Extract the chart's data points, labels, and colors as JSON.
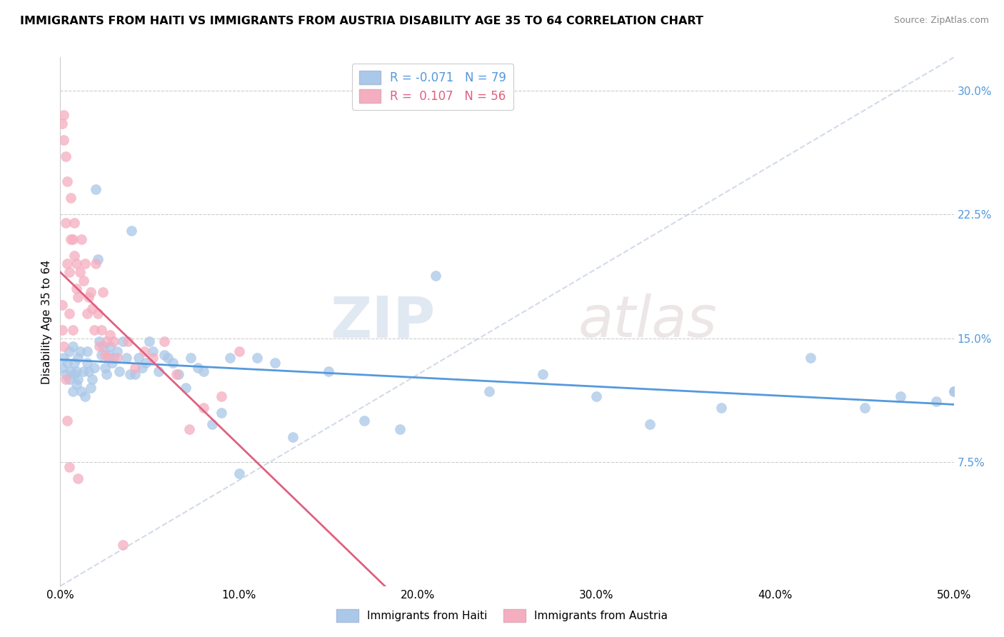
{
  "title": "IMMIGRANTS FROM HAITI VS IMMIGRANTS FROM AUSTRIA DISABILITY AGE 35 TO 64 CORRELATION CHART",
  "source": "Source: ZipAtlas.com",
  "ylabel": "Disability Age 35 to 64",
  "xmin": 0.0,
  "xmax": 0.5,
  "ymin": 0.0,
  "ymax": 0.32,
  "yticks": [
    0.075,
    0.15,
    0.225,
    0.3
  ],
  "ytick_labels": [
    "7.5%",
    "15.0%",
    "22.5%",
    "30.0%"
  ],
  "xticks": [
    0.0,
    0.1,
    0.2,
    0.3,
    0.4,
    0.5
  ],
  "xtick_labels": [
    "0.0%",
    "10.0%",
    "20.0%",
    "30.0%",
    "40.0%",
    "50.0%"
  ],
  "haiti_color": "#aac8e8",
  "austria_color": "#f5aec0",
  "haiti_line_color": "#5599dd",
  "austria_line_color": "#e06080",
  "haiti_R": -0.071,
  "haiti_N": 79,
  "austria_R": 0.107,
  "austria_N": 56,
  "haiti_x": [
    0.001,
    0.002,
    0.003,
    0.004,
    0.005,
    0.005,
    0.006,
    0.007,
    0.007,
    0.008,
    0.008,
    0.009,
    0.009,
    0.01,
    0.01,
    0.011,
    0.012,
    0.013,
    0.014,
    0.015,
    0.015,
    0.016,
    0.017,
    0.018,
    0.019,
    0.02,
    0.021,
    0.022,
    0.023,
    0.024,
    0.025,
    0.026,
    0.027,
    0.028,
    0.029,
    0.03,
    0.032,
    0.033,
    0.035,
    0.037,
    0.039,
    0.04,
    0.042,
    0.044,
    0.046,
    0.048,
    0.05,
    0.052,
    0.055,
    0.058,
    0.06,
    0.063,
    0.066,
    0.07,
    0.073,
    0.077,
    0.08,
    0.085,
    0.09,
    0.095,
    0.1,
    0.11,
    0.12,
    0.13,
    0.15,
    0.17,
    0.19,
    0.21,
    0.24,
    0.27,
    0.3,
    0.33,
    0.37,
    0.42,
    0.45,
    0.47,
    0.49,
    0.5,
    0.5
  ],
  "haiti_y": [
    0.132,
    0.138,
    0.128,
    0.135,
    0.142,
    0.125,
    0.13,
    0.118,
    0.145,
    0.128,
    0.135,
    0.122,
    0.13,
    0.138,
    0.125,
    0.142,
    0.118,
    0.13,
    0.115,
    0.135,
    0.142,
    0.13,
    0.12,
    0.125,
    0.132,
    0.24,
    0.198,
    0.148,
    0.14,
    0.145,
    0.132,
    0.128,
    0.14,
    0.145,
    0.135,
    0.138,
    0.142,
    0.13,
    0.148,
    0.138,
    0.128,
    0.215,
    0.128,
    0.138,
    0.132,
    0.135,
    0.148,
    0.142,
    0.13,
    0.14,
    0.138,
    0.135,
    0.128,
    0.12,
    0.138,
    0.132,
    0.13,
    0.098,
    0.105,
    0.138,
    0.068,
    0.138,
    0.135,
    0.09,
    0.13,
    0.1,
    0.095,
    0.188,
    0.118,
    0.128,
    0.115,
    0.098,
    0.108,
    0.138,
    0.108,
    0.115,
    0.112,
    0.118,
    0.118
  ],
  "austria_x": [
    0.001,
    0.001,
    0.001,
    0.002,
    0.002,
    0.002,
    0.003,
    0.003,
    0.003,
    0.004,
    0.004,
    0.004,
    0.005,
    0.005,
    0.005,
    0.006,
    0.006,
    0.007,
    0.007,
    0.008,
    0.008,
    0.009,
    0.009,
    0.01,
    0.01,
    0.011,
    0.012,
    0.013,
    0.014,
    0.015,
    0.016,
    0.017,
    0.018,
    0.019,
    0.02,
    0.021,
    0.022,
    0.023,
    0.024,
    0.025,
    0.026,
    0.027,
    0.028,
    0.03,
    0.032,
    0.035,
    0.038,
    0.042,
    0.047,
    0.052,
    0.058,
    0.065,
    0.072,
    0.08,
    0.09,
    0.1
  ],
  "austria_y": [
    0.17,
    0.155,
    0.28,
    0.27,
    0.285,
    0.145,
    0.22,
    0.26,
    0.125,
    0.245,
    0.195,
    0.1,
    0.165,
    0.19,
    0.072,
    0.21,
    0.235,
    0.155,
    0.21,
    0.22,
    0.2,
    0.18,
    0.195,
    0.175,
    0.065,
    0.19,
    0.21,
    0.185,
    0.195,
    0.165,
    0.175,
    0.178,
    0.168,
    0.155,
    0.195,
    0.165,
    0.145,
    0.155,
    0.178,
    0.14,
    0.148,
    0.138,
    0.152,
    0.148,
    0.138,
    0.025,
    0.148,
    0.132,
    0.142,
    0.138,
    0.148,
    0.128,
    0.095,
    0.108,
    0.115,
    0.142
  ],
  "watermark_zip": "ZIP",
  "watermark_atlas": "atlas",
  "background_color": "#ffffff",
  "grid_color": "#cccccc"
}
